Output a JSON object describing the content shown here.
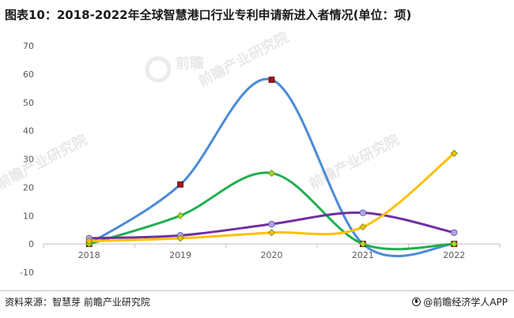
{
  "title": "图表10：2018-2022年全球智慧港口行业专利申请新进入者情况(单位：项)",
  "source": "资料来源：智慧芽 前瞻产业研究院",
  "brand": "@前瞻经济学人APP",
  "watermark": {
    "name": "前瞻产业研究院",
    "logo_text": "前瞻"
  },
  "chart_data": {
    "type": "line",
    "categories": [
      "2018",
      "2019",
      "2020",
      "2021",
      "2022"
    ],
    "ylim": [
      -10,
      70
    ],
    "yticks": [
      -10,
      0,
      10,
      20,
      30,
      40,
      50,
      60,
      70
    ],
    "grid": false,
    "smooth": true,
    "series": [
      {
        "values": [
          0,
          21,
          58,
          0,
          0
        ],
        "color": "#4a8ad8",
        "marker": "square",
        "marker_color": "#a3141a"
      },
      {
        "values": [
          0,
          10,
          25,
          0,
          0
        ],
        "color": "#1faf4f",
        "marker": "diamond",
        "marker_color": "#a3dc2a"
      },
      {
        "values": [
          2,
          3,
          7,
          11,
          4
        ],
        "color": "#7030a0",
        "marker": "circle",
        "marker_color": "#a9a9e6"
      },
      {
        "values": [
          1,
          2,
          4,
          6,
          32
        ],
        "color": "#ffc000",
        "marker": "diamond",
        "marker_color": "#ffc000"
      }
    ]
  }
}
